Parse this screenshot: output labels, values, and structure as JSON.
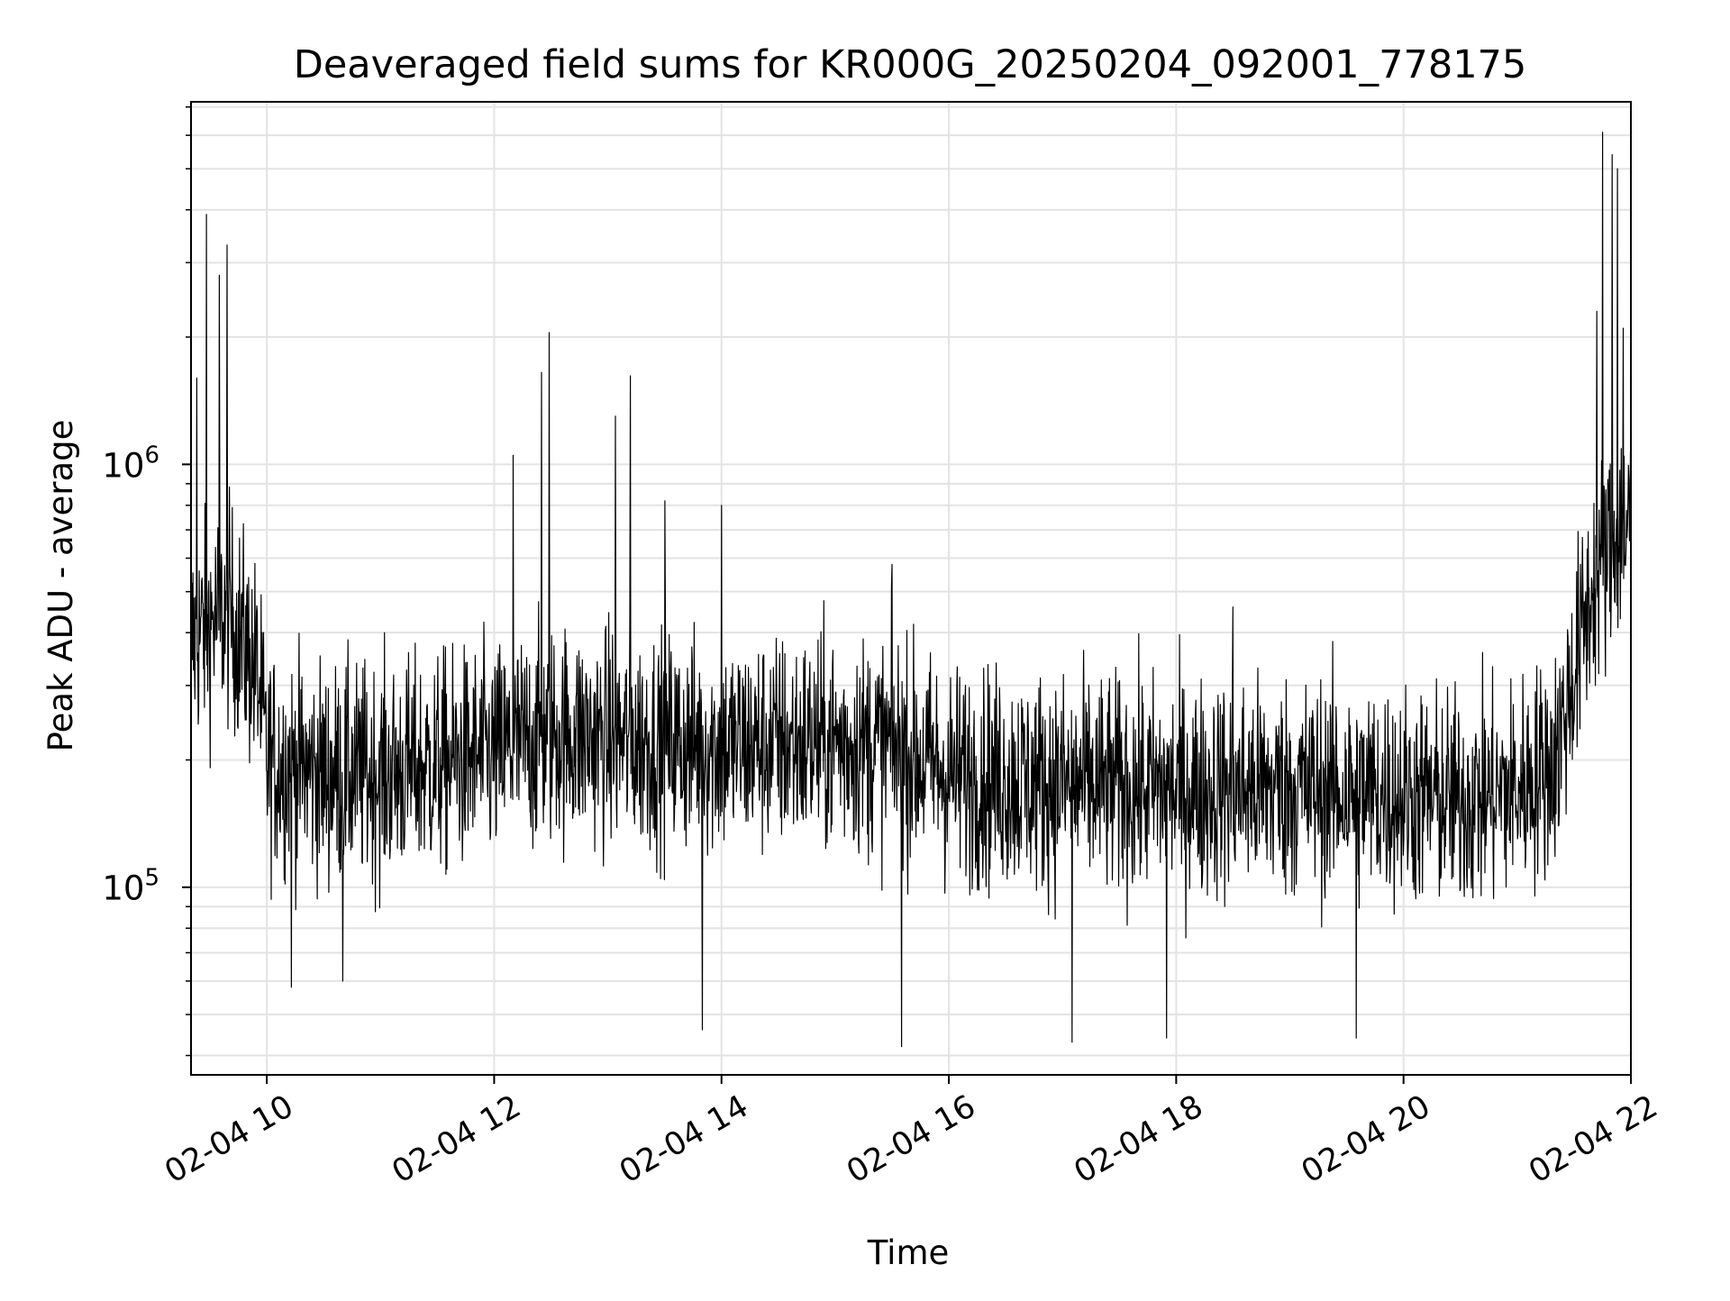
{
  "chart_data": {
    "type": "line",
    "title": "Deaveraged field sums for KR000G_20250204_092001_778175",
    "xlabel": "Time",
    "ylabel": "Peak ADU - average",
    "yscale": "log",
    "grid": true,
    "legend": "none",
    "x_ticks": [
      "02-04 10",
      "02-04 12",
      "02-04 14",
      "02-04 16",
      "02-04 18",
      "02-04 20",
      "02-04 22"
    ],
    "y_ticks": [
      {
        "base": "10",
        "exp": "5",
        "value": 100000
      },
      {
        "base": "10",
        "exp": "6",
        "value": 1000000
      }
    ],
    "xlim": [
      "2025-02-04 09:20",
      "2025-02-04 22:00"
    ],
    "ylim": [
      36000,
      7200000
    ],
    "series": [
      {
        "color": "#000000",
        "x": [
          "2025-02-04 09:20",
          "2025-02-04 09:30",
          "2025-02-04 09:40",
          "2025-02-04 09:55",
          "2025-02-04 10:00",
          "2025-02-04 10:30",
          "2025-02-04 11:00",
          "2025-02-04 11:30",
          "2025-02-04 12:00",
          "2025-02-04 12:30",
          "2025-02-04 13:00",
          "2025-02-04 13:30",
          "2025-02-04 14:00",
          "2025-02-04 15:00",
          "2025-02-04 15:30",
          "2025-02-04 16:00",
          "2025-02-04 17:00",
          "2025-02-04 18:00",
          "2025-02-04 19:00",
          "2025-02-04 20:00",
          "2025-02-04 20:30",
          "2025-02-04 21:00",
          "2025-02-04 21:20",
          "2025-02-04 21:40",
          "2025-02-04 22:00"
        ],
        "baseline": [
          380000,
          420000,
          450000,
          320000,
          200000,
          185000,
          185000,
          195000,
          205000,
          230000,
          225000,
          220000,
          215000,
          220000,
          215000,
          185000,
          175000,
          170000,
          172000,
          165000,
          160000,
          170000,
          200000,
          520000,
          780000
        ],
        "spikes": [
          {
            "x": "2025-02-04 09:23",
            "y": 1600000
          },
          {
            "x": "2025-02-04 09:28",
            "y": 3900000
          },
          {
            "x": "2025-02-04 09:35",
            "y": 2800000
          },
          {
            "x": "2025-02-04 09:39",
            "y": 3300000
          },
          {
            "x": "2025-02-04 12:10",
            "y": 1050000
          },
          {
            "x": "2025-02-04 12:25",
            "y": 1650000
          },
          {
            "x": "2025-02-04 12:29",
            "y": 2050000
          },
          {
            "x": "2025-02-04 13:04",
            "y": 1300000
          },
          {
            "x": "2025-02-04 13:12",
            "y": 1620000
          },
          {
            "x": "2025-02-04 13:30",
            "y": 820000
          },
          {
            "x": "2025-02-04 14:00",
            "y": 800000
          },
          {
            "x": "2025-02-04 15:30",
            "y": 580000
          },
          {
            "x": "2025-02-04 18:30",
            "y": 460000
          },
          {
            "x": "2025-02-04 21:42",
            "y": 2300000
          },
          {
            "x": "2025-02-04 21:45",
            "y": 6100000
          },
          {
            "x": "2025-02-04 21:50",
            "y": 5400000
          },
          {
            "x": "2025-02-04 21:53",
            "y": 5000000
          },
          {
            "x": "2025-02-04 21:56",
            "y": 2100000
          }
        ],
        "dips": [
          {
            "x": "2025-02-04 10:13",
            "y": 58000
          },
          {
            "x": "2025-02-04 10:40",
            "y": 60000
          },
          {
            "x": "2025-02-04 13:50",
            "y": 46000
          },
          {
            "x": "2025-02-04 15:35",
            "y": 42000
          },
          {
            "x": "2025-02-04 17:05",
            "y": 43000
          },
          {
            "x": "2025-02-04 17:55",
            "y": 44000
          },
          {
            "x": "2025-02-04 19:35",
            "y": 44000
          }
        ]
      }
    ]
  }
}
